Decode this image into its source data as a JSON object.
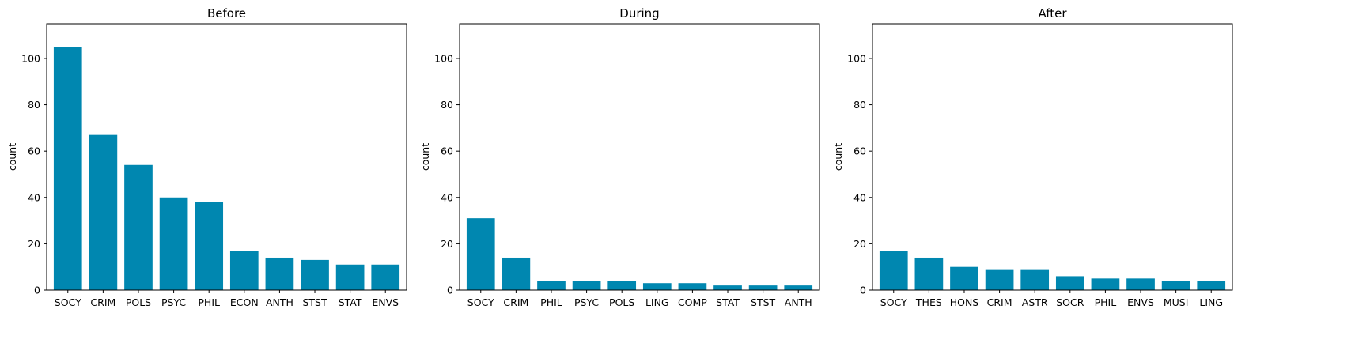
{
  "chart_data": [
    {
      "type": "bar",
      "title": "Before",
      "xlabel": "",
      "ylabel": "count",
      "ylim": [
        0,
        115
      ],
      "yticks": [
        0,
        20,
        40,
        60,
        80,
        100
      ],
      "bar_color": "#0087b0",
      "categories": [
        "SOCY",
        "CRIM",
        "POLS",
        "PSYC",
        "PHIL",
        "ECON",
        "ANTH",
        "STST",
        "STAT",
        "ENVS"
      ],
      "values": [
        105,
        67,
        54,
        40,
        38,
        17,
        14,
        13,
        11,
        11
      ]
    },
    {
      "type": "bar",
      "title": "During",
      "xlabel": "",
      "ylabel": "count",
      "ylim": [
        0,
        115
      ],
      "yticks": [
        0,
        20,
        40,
        60,
        80,
        100
      ],
      "bar_color": "#0087b0",
      "categories": [
        "SOCY",
        "CRIM",
        "PHIL",
        "PSYC",
        "POLS",
        "LING",
        "COMP",
        "STAT",
        "STST",
        "ANTH"
      ],
      "values": [
        31,
        14,
        4,
        4,
        4,
        3,
        3,
        2,
        2,
        2
      ]
    },
    {
      "type": "bar",
      "title": "After",
      "xlabel": "",
      "ylabel": "count",
      "ylim": [
        0,
        115
      ],
      "yticks": [
        0,
        20,
        40,
        60,
        80,
        100
      ],
      "bar_color": "#0087b0",
      "categories": [
        "SOCY",
        "THES",
        "HONS",
        "CRIM",
        "ASTR",
        "SOCR",
        "PHIL",
        "ENVS",
        "MUSI",
        "LING"
      ],
      "values": [
        17,
        14,
        10,
        9,
        9,
        6,
        5,
        5,
        4,
        4
      ]
    }
  ]
}
